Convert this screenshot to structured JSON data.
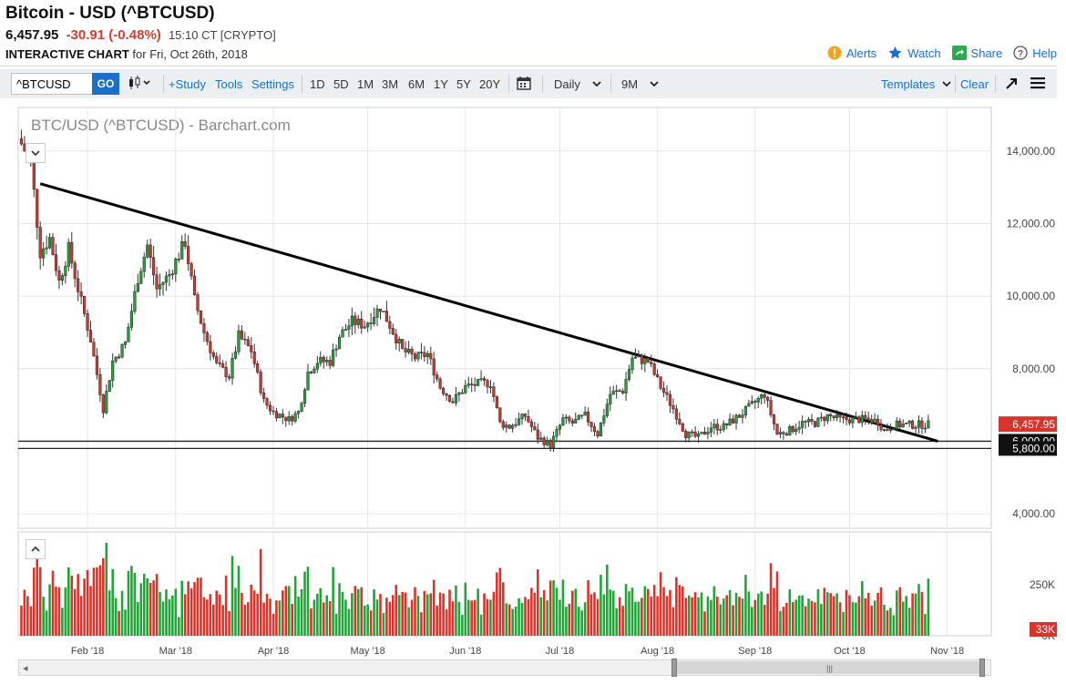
{
  "header": {
    "title": "Bitcoin - USD (^BTCUSD)",
    "price": "6,457.95",
    "change": "-30.91 (-0.48%)",
    "time_exchange": "15:10 CT [CRYPTO]",
    "chart_label": "INTERACTIVE CHART",
    "chart_date": "for Fri, Oct 26th, 2018"
  },
  "actions": {
    "alerts": "Alerts",
    "watch": "Watch",
    "share": "Share",
    "help": "Help"
  },
  "toolbar": {
    "symbol": "^BTCUSD",
    "go": "GO",
    "study": "+Study",
    "tools": "Tools",
    "settings": "Settings",
    "periods": [
      "1D",
      "5D",
      "1M",
      "3M",
      "6M",
      "1Y",
      "5Y",
      "20Y"
    ],
    "frequency": "Daily",
    "range": "9M",
    "templates": "Templates",
    "clear": "Clear"
  },
  "chart_data": {
    "type": "candlestick",
    "title": "BTC/USD (^BTCUSD) - Barchart.com",
    "ylim": [
      3600,
      15200
    ],
    "y_ticks": [
      "14,000.00",
      "12,000.00",
      "10,000.00",
      "8,000.00",
      "6,000.00",
      "4,000.00"
    ],
    "x_ticks": [
      "Feb '18",
      "Mar '18",
      "Apr '18",
      "May '18",
      "Jun '18",
      "Jul '18",
      "Aug '18",
      "Sep '18",
      "Oct '18",
      "Nov '18"
    ],
    "last_price_label": "6,457.95",
    "horizontal_lines": [
      {
        "value": 6000,
        "label": "6,000.00"
      },
      {
        "value": 5800,
        "label": "5,800.00"
      }
    ],
    "trendline": {
      "start": [
        "2018-01-17",
        13100
      ],
      "end": [
        "2018-10-29",
        6000
      ]
    },
    "close_anchors": [
      [
        "2018-01-11",
        14200
      ],
      [
        "2018-01-14",
        13700
      ],
      [
        "2018-01-17",
        11200
      ],
      [
        "2018-01-20",
        11600
      ],
      [
        "2018-01-23",
        10400
      ],
      [
        "2018-01-26",
        11300
      ],
      [
        "2018-01-29",
        10200
      ],
      [
        "2018-02-02",
        8800
      ],
      [
        "2018-02-06",
        6900
      ],
      [
        "2018-02-09",
        8200
      ],
      [
        "2018-02-13",
        8700
      ],
      [
        "2018-02-17",
        10500
      ],
      [
        "2018-02-20",
        11400
      ],
      [
        "2018-02-23",
        10200
      ],
      [
        "2018-02-27",
        10600
      ],
      [
        "2018-03-04",
        11500
      ],
      [
        "2018-03-07",
        9900
      ],
      [
        "2018-03-10",
        9000
      ],
      [
        "2018-03-14",
        8100
      ],
      [
        "2018-03-18",
        7800
      ],
      [
        "2018-03-21",
        8900
      ],
      [
        "2018-03-25",
        8500
      ],
      [
        "2018-03-29",
        7100
      ],
      [
        "2018-04-01",
        6800
      ],
      [
        "2018-04-06",
        6600
      ],
      [
        "2018-04-09",
        6800
      ],
      [
        "2018-04-12",
        7900
      ],
      [
        "2018-04-15",
        8200
      ],
      [
        "2018-04-19",
        8200
      ],
      [
        "2018-04-22",
        8900
      ],
      [
        "2018-04-26",
        9300
      ],
      [
        "2018-04-30",
        9200
      ],
      [
        "2018-05-05",
        9700
      ],
      [
        "2018-05-08",
        9200
      ],
      [
        "2018-05-12",
        8500
      ],
      [
        "2018-05-16",
        8300
      ],
      [
        "2018-05-20",
        8400
      ],
      [
        "2018-05-24",
        7500
      ],
      [
        "2018-05-28",
        7100
      ],
      [
        "2018-06-01",
        7500
      ],
      [
        "2018-06-06",
        7600
      ],
      [
        "2018-06-09",
        7600
      ],
      [
        "2018-06-12",
        6500
      ],
      [
        "2018-06-15",
        6400
      ],
      [
        "2018-06-20",
        6700
      ],
      [
        "2018-06-24",
        6100
      ],
      [
        "2018-06-28",
        5900
      ],
      [
        "2018-07-02",
        6600
      ],
      [
        "2018-07-05",
        6500
      ],
      [
        "2018-07-09",
        6700
      ],
      [
        "2018-07-13",
        6200
      ],
      [
        "2018-07-17",
        7300
      ],
      [
        "2018-07-21",
        7400
      ],
      [
        "2018-07-24",
        8300
      ],
      [
        "2018-07-29",
        8200
      ],
      [
        "2018-08-02",
        7500
      ],
      [
        "2018-08-06",
        6900
      ],
      [
        "2018-08-10",
        6200
      ],
      [
        "2018-08-14",
        6100
      ],
      [
        "2018-08-18",
        6400
      ],
      [
        "2018-08-22",
        6400
      ],
      [
        "2018-08-27",
        6700
      ],
      [
        "2018-08-31",
        7000
      ],
      [
        "2018-09-04",
        7300
      ],
      [
        "2018-09-08",
        6200
      ],
      [
        "2018-09-12",
        6300
      ],
      [
        "2018-09-16",
        6500
      ],
      [
        "2018-09-20",
        6500
      ],
      [
        "2018-09-24",
        6700
      ],
      [
        "2018-09-28",
        6600
      ],
      [
        "2018-10-02",
        6600
      ],
      [
        "2018-10-06",
        6600
      ],
      [
        "2018-10-10",
        6550
      ],
      [
        "2018-10-12",
        6300
      ],
      [
        "2018-10-15",
        6450
      ],
      [
        "2018-10-19",
        6450
      ],
      [
        "2018-10-26",
        6457.95
      ]
    ],
    "volume_ticks": [
      "250K",
      "0K"
    ],
    "volume_last_label": "33K"
  }
}
